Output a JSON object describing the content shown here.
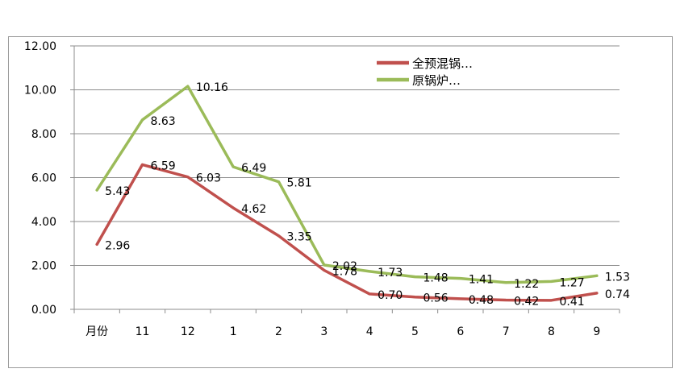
{
  "chart_data": {
    "type": "line",
    "categories": [
      "月份",
      "11",
      "12",
      "1",
      "2",
      "3",
      "4",
      "5",
      "6",
      "7",
      "8",
      "9"
    ],
    "series": [
      {
        "name": "全预混锅…",
        "color": "#c0504d",
        "values": [
          2.96,
          6.59,
          6.03,
          4.62,
          3.35,
          1.78,
          0.7,
          0.56,
          0.48,
          0.42,
          0.41,
          0.74
        ],
        "labels": [
          "2.96",
          "6.59",
          "6.03",
          "4.62",
          "3.35",
          "1.78",
          "0.70",
          "0.56",
          "0.48",
          "0.42",
          "0.41",
          "0.74"
        ]
      },
      {
        "name": "原锅炉…",
        "color": "#9bbb59",
        "values": [
          5.43,
          8.63,
          10.16,
          6.49,
          5.81,
          2.02,
          1.73,
          1.48,
          1.41,
          1.22,
          1.27,
          1.53
        ],
        "labels": [
          "5.43",
          "8.63",
          "10.16",
          "6.49",
          "5.81",
          "2.02",
          "1.73",
          "1.48",
          "1.41",
          "1.22",
          "1.27",
          "1.53"
        ]
      }
    ],
    "yticks": [
      "0.00",
      "2.00",
      "4.00",
      "6.00",
      "8.00",
      "10.00",
      "12.00"
    ],
    "ylim": [
      0,
      12
    ],
    "grid": true,
    "legend_position": "top-right",
    "gridline_color": "#8c8c8c",
    "axis_color": "#8c8c8c"
  }
}
